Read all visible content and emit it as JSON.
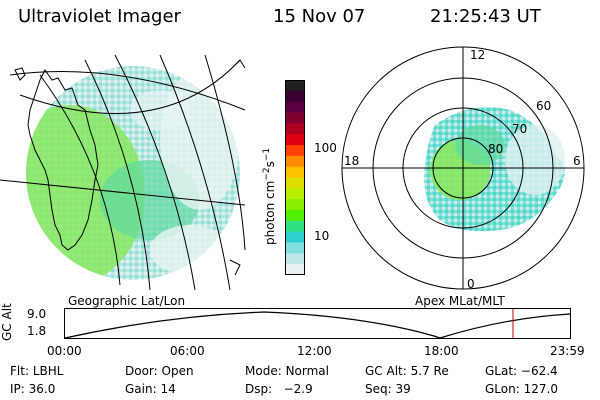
{
  "header": {
    "instrument": "Ultraviolet Imager",
    "date": "15 Nov 07",
    "time": "21:25:43 UT"
  },
  "colorbar": {
    "unit": "photon cm",
    "unit_sup1": "−2",
    "unit_mid": "s",
    "unit_sup2": "−1",
    "ticks": [
      "100",
      "10"
    ],
    "colors": [
      "#202020",
      "#3a0030",
      "#5a0040",
      "#800030",
      "#b00020",
      "#e00010",
      "#ff4000",
      "#ff8c00",
      "#ffc000",
      "#e0e000",
      "#b8f000",
      "#88f000",
      "#50f000",
      "#30e080",
      "#30d0d0",
      "#80e0e0",
      "#c0e8e8",
      "#e8f0f0"
    ]
  },
  "left_panel": {
    "caption": "Geographic Lat/Lon"
  },
  "right_panel": {
    "caption": "Apex MLat/MLT",
    "mlt_labels": {
      "top": "12",
      "bottom": "0",
      "left": "18",
      "right": "6"
    },
    "lat_labels": [
      "60",
      "70",
      "80"
    ]
  },
  "altitude_plot": {
    "label": "GC Alt",
    "ymax": "9.0",
    "ymin": "1.8",
    "time_ticks": [
      "00:00",
      "06:00",
      "12:00",
      "18:00",
      "23:59"
    ],
    "current_time_marker_color": "#c00000"
  },
  "info": {
    "row1": [
      {
        "label": "Flt:",
        "value": "LBHL"
      },
      {
        "label": "Door:",
        "value": "Open"
      },
      {
        "label": "Mode:",
        "value": "Normal"
      },
      {
        "label": "GC Alt:",
        "value": "5.7 Re"
      },
      {
        "label": "GLat:",
        "value": "−62.4"
      }
    ],
    "row2": [
      {
        "label": "IP:",
        "value": "36.0"
      },
      {
        "label": "Gain:",
        "value": "14"
      },
      {
        "label": "Dsp:",
        "value": "−2.9"
      },
      {
        "label": "Seq:",
        "value": "39"
      },
      {
        "label": "GLon:",
        "value": "127.0"
      }
    ]
  }
}
